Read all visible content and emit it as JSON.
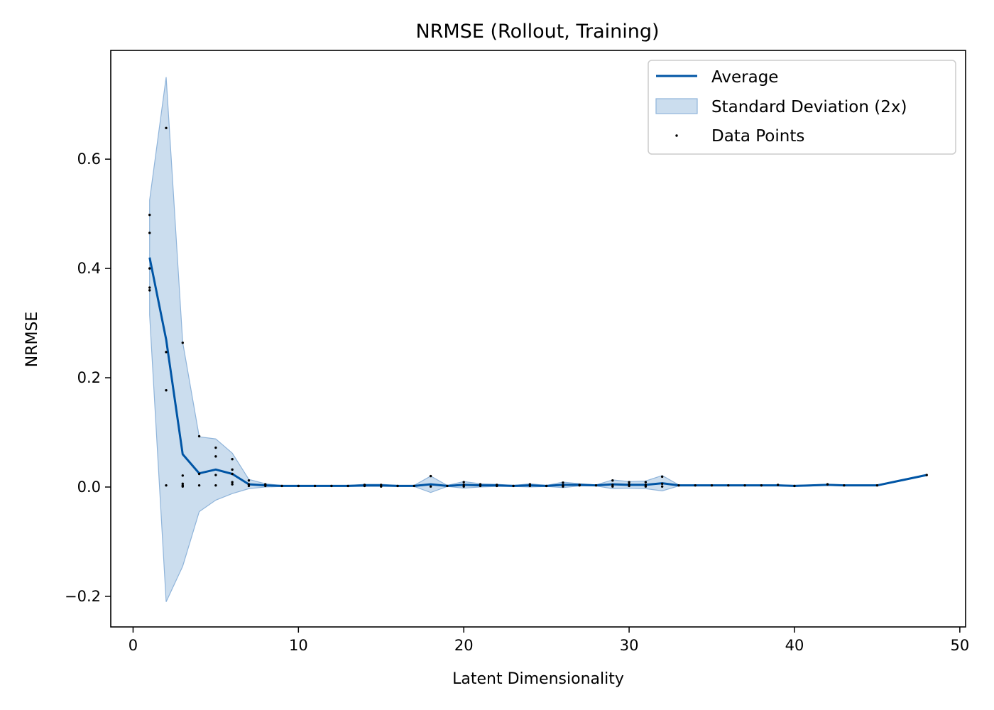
{
  "chart_data": {
    "type": "line",
    "title": "NRMSE (Rollout, Training)",
    "xlabel": "Latent Dimensionality",
    "ylabel": "NRMSE",
    "xlim": [
      -1.35,
      50.35
    ],
    "ylim": [
      -0.256,
      0.799
    ],
    "xticks": [
      0,
      10,
      20,
      30,
      40,
      50
    ],
    "yticks": [
      -0.2,
      0.0,
      0.2,
      0.4,
      0.6
    ],
    "ytick_labels": [
      "−0.2",
      "0.0",
      "0.2",
      "0.4",
      "0.6"
    ],
    "grid": false,
    "legend": {
      "position": "top-right",
      "entries": [
        "Average",
        "Standard Deviation (2x)",
        "Data Points"
      ]
    },
    "colors": {
      "average": "#0055a5",
      "band_fill": "#a9c6e3",
      "band_edge": "#8fb4da",
      "points": "#000000"
    },
    "series": [
      {
        "name": "Average",
        "x": [
          1,
          2,
          3,
          4,
          5,
          6,
          7,
          8,
          9,
          10,
          11,
          12,
          13,
          14,
          15,
          16,
          17,
          18,
          19,
          20,
          21,
          22,
          23,
          24,
          25,
          26,
          27,
          28,
          29,
          30,
          31,
          32,
          33,
          34,
          35,
          36,
          37,
          38,
          39,
          40,
          42,
          43,
          45,
          48
        ],
        "y": [
          0.42,
          0.27,
          0.06,
          0.025,
          0.032,
          0.024,
          0.005,
          0.003,
          0.002,
          0.002,
          0.002,
          0.002,
          0.002,
          0.003,
          0.003,
          0.002,
          0.002,
          0.005,
          0.002,
          0.004,
          0.003,
          0.003,
          0.002,
          0.003,
          0.002,
          0.004,
          0.004,
          0.003,
          0.005,
          0.004,
          0.004,
          0.007,
          0.003,
          0.003,
          0.003,
          0.003,
          0.003,
          0.003,
          0.003,
          0.002,
          0.004,
          0.003,
          0.003,
          0.022
        ]
      }
    ],
    "band": {
      "name": "Standard Deviation (2x)",
      "x": [
        1,
        2,
        3,
        4,
        5,
        6,
        7,
        8,
        9,
        10,
        11,
        12,
        13,
        14,
        15,
        16,
        17,
        18,
        19,
        20,
        21,
        22,
        23,
        24,
        25,
        26,
        27,
        28,
        29,
        30,
        31,
        32,
        33,
        34,
        35,
        36,
        37,
        38,
        39,
        40,
        42,
        43,
        45,
        48
      ],
      "upper": [
        0.525,
        0.75,
        0.265,
        0.092,
        0.088,
        0.062,
        0.014,
        0.006,
        0.003,
        0.003,
        0.003,
        0.003,
        0.003,
        0.005,
        0.005,
        0.003,
        0.003,
        0.02,
        0.003,
        0.01,
        0.006,
        0.005,
        0.003,
        0.006,
        0.003,
        0.009,
        0.006,
        0.004,
        0.013,
        0.01,
        0.011,
        0.021,
        0.004,
        0.004,
        0.004,
        0.004,
        0.004,
        0.004,
        0.004,
        0.003,
        0.005,
        0.004,
        0.004,
        0.023
      ],
      "lower": [
        0.315,
        -0.21,
        -0.145,
        -0.045,
        -0.024,
        -0.012,
        -0.003,
        0.0,
        0.001,
        0.001,
        0.001,
        0.001,
        0.001,
        0.001,
        0.001,
        0.001,
        0.001,
        -0.01,
        0.001,
        -0.002,
        0.0,
        0.001,
        0.001,
        0.0,
        0.001,
        -0.001,
        0.002,
        0.002,
        -0.003,
        -0.002,
        -0.003,
        -0.007,
        0.002,
        0.002,
        0.002,
        0.002,
        0.002,
        0.002,
        0.002,
        0.001,
        0.003,
        0.002,
        0.002,
        0.021
      ]
    },
    "points": {
      "name": "Data Points",
      "values": [
        [
          1,
          0.498
        ],
        [
          1,
          0.465
        ],
        [
          1,
          0.4
        ],
        [
          1,
          0.365
        ],
        [
          1,
          0.36
        ],
        [
          2,
          0.657
        ],
        [
          2,
          0.247
        ],
        [
          2,
          0.177
        ],
        [
          2,
          0.003
        ],
        [
          3,
          0.264
        ],
        [
          3,
          0.021
        ],
        [
          3,
          0.006
        ],
        [
          3,
          0.003
        ],
        [
          3,
          0.001
        ],
        [
          4,
          0.093
        ],
        [
          4,
          0.024
        ],
        [
          4,
          0.003
        ],
        [
          5,
          0.072
        ],
        [
          5,
          0.056
        ],
        [
          5,
          0.022
        ],
        [
          5,
          0.003
        ],
        [
          6,
          0.051
        ],
        [
          6,
          0.032
        ],
        [
          6,
          0.024
        ],
        [
          6,
          0.009
        ],
        [
          6,
          0.005
        ],
        [
          7,
          0.012
        ],
        [
          7,
          0.005
        ],
        [
          7,
          0.002
        ],
        [
          8,
          0.005
        ],
        [
          8,
          0.002
        ],
        [
          9,
          0.002
        ],
        [
          10,
          0.002
        ],
        [
          11,
          0.002
        ],
        [
          12,
          0.002
        ],
        [
          13,
          0.002
        ],
        [
          14,
          0.004
        ],
        [
          14,
          0.002
        ],
        [
          15,
          0.004
        ],
        [
          15,
          0.001
        ],
        [
          16,
          0.002
        ],
        [
          17,
          0.002
        ],
        [
          18,
          0.02
        ],
        [
          18,
          0.001
        ],
        [
          19,
          0.002
        ],
        [
          20,
          0.009
        ],
        [
          20,
          0.004
        ],
        [
          20,
          0.001
        ],
        [
          21,
          0.005
        ],
        [
          21,
          0.002
        ],
        [
          22,
          0.004
        ],
        [
          22,
          0.002
        ],
        [
          23,
          0.002
        ],
        [
          24,
          0.005
        ],
        [
          24,
          0.002
        ],
        [
          25,
          0.002
        ],
        [
          26,
          0.008
        ],
        [
          26,
          0.003
        ],
        [
          26,
          0.001
        ],
        [
          27,
          0.004
        ],
        [
          27,
          0.003
        ],
        [
          28,
          0.003
        ],
        [
          29,
          0.012
        ],
        [
          29,
          0.004
        ],
        [
          29,
          0.001
        ],
        [
          30,
          0.009
        ],
        [
          30,
          0.005
        ],
        [
          30,
          0.002
        ],
        [
          31,
          0.009
        ],
        [
          31,
          0.004
        ],
        [
          31,
          0.001
        ],
        [
          32,
          0.019
        ],
        [
          32,
          0.006
        ],
        [
          32,
          0.001
        ],
        [
          33,
          0.003
        ],
        [
          34,
          0.003
        ],
        [
          35,
          0.003
        ],
        [
          36,
          0.003
        ],
        [
          37,
          0.003
        ],
        [
          38,
          0.003
        ],
        [
          39,
          0.004
        ],
        [
          40,
          0.002
        ],
        [
          42,
          0.005
        ],
        [
          43,
          0.003
        ],
        [
          45,
          0.003
        ],
        [
          48,
          0.022
        ]
      ]
    }
  }
}
